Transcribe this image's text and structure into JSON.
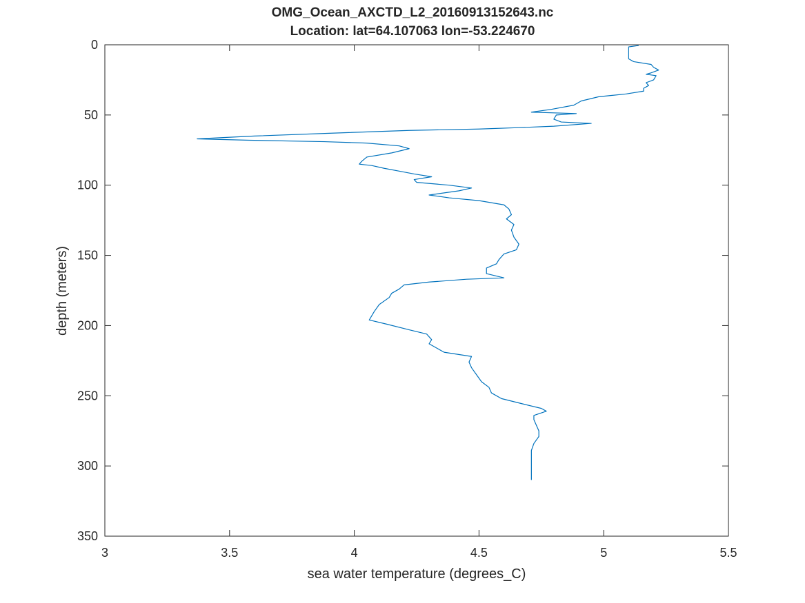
{
  "chart_data": {
    "type": "line",
    "title": "OMG_Ocean_AXCTD_L2_20160913152643.nc",
    "subtitle": "Location: lat=64.107063 lon=-53.224670",
    "xlabel": "sea water temperature (degrees_C)",
    "ylabel": "depth (meters)",
    "xlim": [
      3,
      5.5
    ],
    "ylim": [
      0,
      350
    ],
    "y_reversed": true,
    "grid": false,
    "x_ticks": [
      3,
      3.5,
      4,
      4.5,
      5,
      5.5
    ],
    "x_tick_labels": [
      "3",
      "3.5",
      "4",
      "4.5",
      "5",
      "5.5"
    ],
    "y_ticks": [
      0,
      50,
      100,
      150,
      200,
      250,
      300,
      350
    ],
    "y_tick_labels": [
      "0",
      "50",
      "100",
      "150",
      "200",
      "250",
      "300",
      "350"
    ],
    "series": [
      {
        "color": "#0072BD",
        "points": [
          [
            5.14,
            0.5
          ],
          [
            5.1,
            1.5
          ],
          [
            5.1,
            5
          ],
          [
            5.1,
            10
          ],
          [
            5.12,
            12
          ],
          [
            5.19,
            14
          ],
          [
            5.2,
            16
          ],
          [
            5.22,
            18
          ],
          [
            5.19,
            20
          ],
          [
            5.17,
            21
          ],
          [
            5.21,
            22
          ],
          [
            5.2,
            25
          ],
          [
            5.17,
            27
          ],
          [
            5.18,
            29
          ],
          [
            5.16,
            31
          ],
          [
            5.16,
            33
          ],
          [
            5.09,
            35
          ],
          [
            4.98,
            37
          ],
          [
            4.91,
            40
          ],
          [
            4.88,
            43
          ],
          [
            4.79,
            46
          ],
          [
            4.71,
            48
          ],
          [
            4.89,
            49
          ],
          [
            4.81,
            50
          ],
          [
            4.8,
            53
          ],
          [
            4.83,
            55
          ],
          [
            4.95,
            56
          ],
          [
            4.8,
            58
          ],
          [
            4.66,
            59
          ],
          [
            4.5,
            60
          ],
          [
            4.22,
            61
          ],
          [
            3.9,
            63
          ],
          [
            3.6,
            65
          ],
          [
            3.37,
            67
          ],
          [
            3.58,
            68
          ],
          [
            3.88,
            69
          ],
          [
            4.05,
            70
          ],
          [
            4.18,
            72
          ],
          [
            4.22,
            74
          ],
          [
            4.15,
            77
          ],
          [
            4.05,
            80
          ],
          [
            4.03,
            83
          ],
          [
            4.02,
            85
          ],
          [
            4.07,
            86
          ],
          [
            4.12,
            88
          ],
          [
            4.18,
            90
          ],
          [
            4.24,
            92
          ],
          [
            4.31,
            94
          ],
          [
            4.24,
            96
          ],
          [
            4.25,
            98
          ],
          [
            4.38,
            100
          ],
          [
            4.47,
            102
          ],
          [
            4.42,
            104
          ],
          [
            4.3,
            107
          ],
          [
            4.38,
            109
          ],
          [
            4.5,
            111
          ],
          [
            4.6,
            114
          ],
          [
            4.62,
            117
          ],
          [
            4.63,
            121
          ],
          [
            4.61,
            124
          ],
          [
            4.64,
            128
          ],
          [
            4.63,
            132
          ],
          [
            4.64,
            137
          ],
          [
            4.66,
            142
          ],
          [
            4.65,
            146
          ],
          [
            4.6,
            149
          ],
          [
            4.58,
            153
          ],
          [
            4.57,
            156
          ],
          [
            4.53,
            159
          ],
          [
            4.53,
            163
          ],
          [
            4.6,
            166
          ],
          [
            4.45,
            167
          ],
          [
            4.3,
            169
          ],
          [
            4.2,
            171
          ],
          [
            4.18,
            174
          ],
          [
            4.15,
            177
          ],
          [
            4.14,
            180
          ],
          [
            4.1,
            185
          ],
          [
            4.08,
            190
          ],
          [
            4.07,
            193
          ],
          [
            4.06,
            196
          ],
          [
            4.13,
            199
          ],
          [
            4.22,
            203
          ],
          [
            4.29,
            206
          ],
          [
            4.31,
            210
          ],
          [
            4.3,
            213
          ],
          [
            4.33,
            216
          ],
          [
            4.36,
            219
          ],
          [
            4.47,
            222
          ],
          [
            4.46,
            226
          ],
          [
            4.47,
            230
          ],
          [
            4.49,
            235
          ],
          [
            4.51,
            240
          ],
          [
            4.54,
            244
          ],
          [
            4.55,
            248
          ],
          [
            4.59,
            252
          ],
          [
            4.68,
            256
          ],
          [
            4.75,
            259
          ],
          [
            4.77,
            261
          ],
          [
            4.72,
            264
          ],
          [
            4.72,
            267
          ],
          [
            4.73,
            271
          ],
          [
            4.74,
            275
          ],
          [
            4.74,
            279
          ],
          [
            4.72,
            284
          ],
          [
            4.71,
            289
          ],
          [
            4.71,
            295
          ],
          [
            4.71,
            300
          ],
          [
            4.71,
            305
          ],
          [
            4.71,
            310
          ]
        ]
      }
    ]
  }
}
